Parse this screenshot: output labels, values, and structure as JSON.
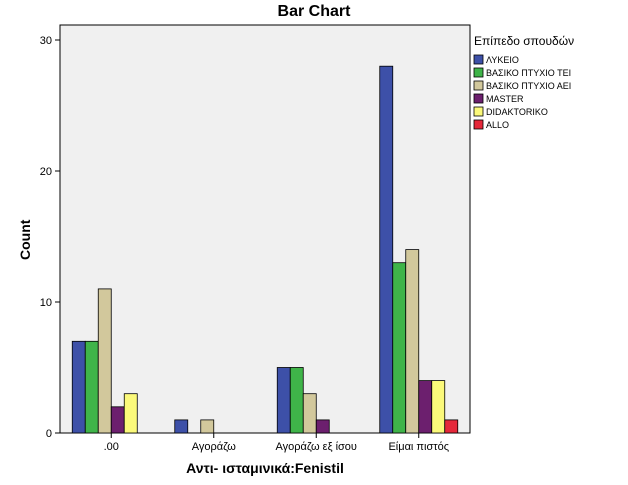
{
  "chart_data": {
    "type": "bar",
    "title": "Bar Chart",
    "xlabel": "Αντι- ισταμινικά:Fenistil",
    "ylabel": "Count",
    "categories": [
      ".00",
      "Αγοράζω",
      "Αγοράζω εξ ίσου",
      "Είμαι πιστός"
    ],
    "ylim": [
      0,
      30
    ],
    "yticks": [
      "0",
      "10",
      "20",
      "30"
    ],
    "legend_title": "Επίπεδο σπουδών",
    "legend_position": "right",
    "series": [
      {
        "name": "ΛΥΚΕΙΟ",
        "color": "#3d50a8",
        "values": [
          7,
          1,
          5,
          28
        ]
      },
      {
        "name": "ΒΑΣΙΚΟ ΠΤΥΧΙΟ ΤΕΙ",
        "color": "#3fb449",
        "values": [
          7,
          0,
          5,
          13
        ]
      },
      {
        "name": "ΒΑΣΙΚΟ ΠΤΥΧΙΟ ΑΕΙ",
        "color": "#d2c89c",
        "values": [
          11,
          1,
          3,
          14
        ]
      },
      {
        "name": "MASTER",
        "color": "#6c1f6e",
        "values": [
          2,
          0,
          1,
          4
        ]
      },
      {
        "name": "DIDAKTORIKO",
        "color": "#fbf97a",
        "values": [
          3,
          0,
          0,
          4
        ]
      },
      {
        "name": "ALLO",
        "color": "#e5283a",
        "values": [
          0,
          0,
          0,
          1
        ]
      }
    ]
  }
}
